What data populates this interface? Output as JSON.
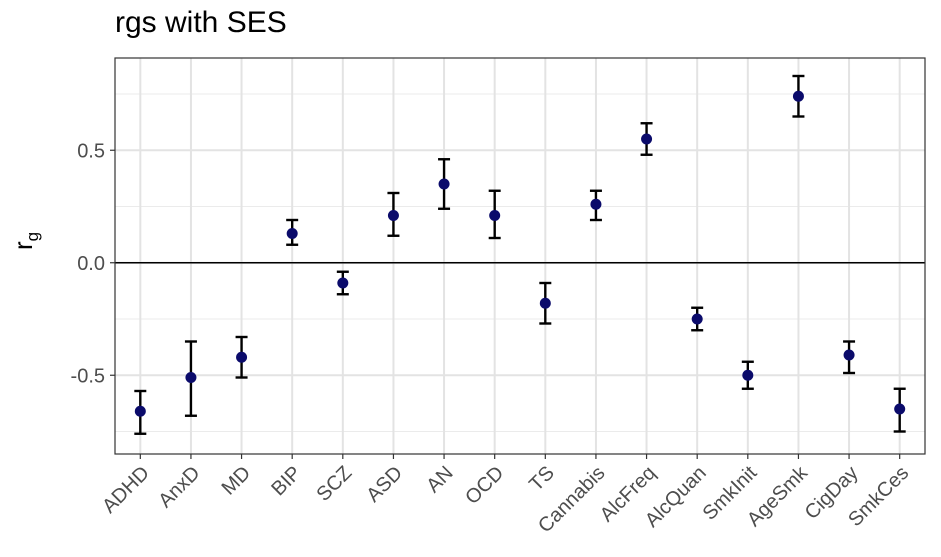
{
  "chart_data": {
    "type": "scatter",
    "title": "rgs with SES",
    "ylabel_base": "r",
    "ylabel_sub": "g",
    "xlabel": "",
    "ylim": [
      -0.85,
      0.91
    ],
    "yticks": [
      -0.5,
      0.0,
      0.5
    ],
    "ytick_labels": [
      "-0.5",
      "0.0",
      "0.5"
    ],
    "reference_line": 0,
    "grid": true,
    "point_color": "#0b0b6b",
    "categories": [
      "ADHD",
      "AnxD",
      "MD",
      "BIP",
      "SCZ",
      "ASD",
      "AN",
      "OCD",
      "TS",
      "Cannabis",
      "AlcFreq",
      "AlcQuan",
      "SmkInit",
      "AgeSmk",
      "CigDay",
      "SmkCes"
    ],
    "series": [
      {
        "values": [
          -0.66,
          -0.51,
          -0.42,
          0.13,
          -0.09,
          0.21,
          0.35,
          0.21,
          -0.18,
          0.26,
          0.55,
          -0.25,
          -0.5,
          0.74,
          -0.41,
          -0.65
        ],
        "lower": [
          -0.76,
          -0.68,
          -0.51,
          0.08,
          -0.14,
          0.12,
          0.24,
          0.11,
          -0.27,
          0.19,
          0.48,
          -0.3,
          -0.56,
          0.65,
          -0.49,
          -0.75
        ],
        "upper": [
          -0.57,
          -0.35,
          -0.33,
          0.19,
          -0.04,
          0.31,
          0.46,
          0.32,
          -0.09,
          0.32,
          0.62,
          -0.2,
          -0.44,
          0.83,
          -0.35,
          -0.56
        ]
      }
    ]
  }
}
